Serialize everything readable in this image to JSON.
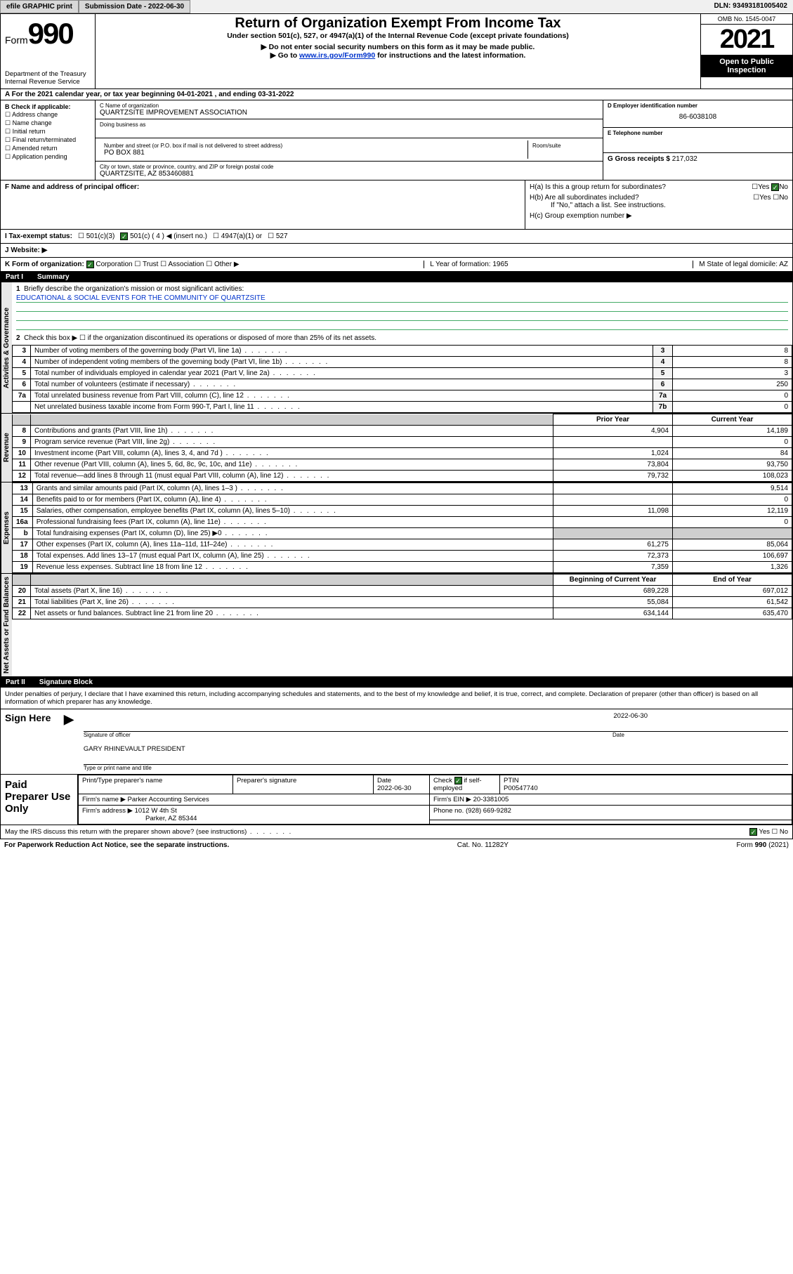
{
  "topbar": {
    "efile": "efile GRAPHIC print",
    "submission_label": "Submission Date - 2022-06-30",
    "dln": "DLN: 93493181005402"
  },
  "header": {
    "form_word": "Form",
    "form_num": "990",
    "dept": "Department of the Treasury",
    "irs": "Internal Revenue Service",
    "title": "Return of Organization Exempt From Income Tax",
    "sub1": "Under section 501(c), 527, or 4947(a)(1) of the Internal Revenue Code (except private foundations)",
    "sub2": "▶ Do not enter social security numbers on this form as it may be made public.",
    "sub3_pre": "▶ Go to ",
    "sub3_link": "www.irs.gov/Form990",
    "sub3_post": " for instructions and the latest information.",
    "omb": "OMB No. 1545-0047",
    "year": "2021",
    "open": "Open to Public Inspection"
  },
  "rowA": {
    "text": "A For the 2021 calendar year, or tax year beginning 04-01-2021    , and ending 03-31-2022"
  },
  "boxB": {
    "label": "B Check if applicable:",
    "items": [
      "Address change",
      "Name change",
      "Initial return",
      "Final return/terminated",
      "Amended return",
      "Application pending"
    ]
  },
  "boxC": {
    "name_lbl": "C Name of organization",
    "name": "QUARTZSITE IMPROVEMENT ASSOCIATION",
    "dba_lbl": "Doing business as",
    "addr_lbl": "Number and street (or P.O. box if mail is not delivered to street address)",
    "room_lbl": "Room/suite",
    "addr": "PO BOX 881",
    "city_lbl": "City or town, state or province, country, and ZIP or foreign postal code",
    "city": "QUARTZSITE, AZ  853460881"
  },
  "boxD": {
    "lbl": "D Employer identification number",
    "val": "86-6038108"
  },
  "boxE": {
    "lbl": "E Telephone number",
    "val": ""
  },
  "boxG": {
    "lbl": "G Gross receipts $",
    "val": "217,032"
  },
  "boxF": {
    "lbl": "F  Name and address of principal officer:"
  },
  "boxH": {
    "ha": "H(a)  Is this a group return for subordinates?",
    "hb": "H(b)  Are all subordinates included?",
    "hb_note": "If \"No,\" attach a list. See instructions.",
    "hc": "H(c)  Group exemption number ▶",
    "yes": "Yes",
    "no": "No"
  },
  "taxI": {
    "lbl": "I   Tax-exempt status:",
    "o1": "501(c)(3)",
    "o2": "501(c) ( 4 ) ◀ (insert no.)",
    "o3": "4947(a)(1) or",
    "o4": "527"
  },
  "webJ": {
    "lbl": "J   Website: ▶"
  },
  "rowK": {
    "k": "K Form of organization:",
    "opts": [
      "Corporation",
      "Trust",
      "Association",
      "Other ▶"
    ],
    "l": "L Year of formation: 1965",
    "m": "M State of legal domicile: AZ"
  },
  "part1": {
    "num": "Part I",
    "title": "Summary"
  },
  "summary": {
    "q1": "Briefly describe the organization's mission or most significant activities:",
    "mission": "EDUCATIONAL & SOCIAL EVENTS FOR THE COMMUNITY OF QUARTZSITE",
    "q2": "Check this box ▶ ☐  if the organization discontinued its operations or disposed of more than 25% of its net assets."
  },
  "gov_rows": [
    {
      "n": "3",
      "t": "Number of voting members of the governing body (Part VI, line 1a)",
      "box": "3",
      "v": "8"
    },
    {
      "n": "4",
      "t": "Number of independent voting members of the governing body (Part VI, line 1b)",
      "box": "4",
      "v": "8"
    },
    {
      "n": "5",
      "t": "Total number of individuals employed in calendar year 2021 (Part V, line 2a)",
      "box": "5",
      "v": "3"
    },
    {
      "n": "6",
      "t": "Total number of volunteers (estimate if necessary)",
      "box": "6",
      "v": "250"
    },
    {
      "n": "7a",
      "t": "Total unrelated business revenue from Part VIII, column (C), line 12",
      "box": "7a",
      "v": "0"
    },
    {
      "n": "",
      "t": "Net unrelated business taxable income from Form 990-T, Part I, line 11",
      "box": "7b",
      "v": "0"
    }
  ],
  "cols": {
    "py": "Prior Year",
    "cy": "Current Year",
    "boc": "Beginning of Current Year",
    "eoy": "End of Year"
  },
  "rev_rows": [
    {
      "n": "8",
      "t": "Contributions and grants (Part VIII, line 1h)",
      "py": "4,904",
      "cy": "14,189"
    },
    {
      "n": "9",
      "t": "Program service revenue (Part VIII, line 2g)",
      "py": "",
      "cy": "0"
    },
    {
      "n": "10",
      "t": "Investment income (Part VIII, column (A), lines 3, 4, and 7d )",
      "py": "1,024",
      "cy": "84"
    },
    {
      "n": "11",
      "t": "Other revenue (Part VIII, column (A), lines 5, 6d, 8c, 9c, 10c, and 11e)",
      "py": "73,804",
      "cy": "93,750"
    },
    {
      "n": "12",
      "t": "Total revenue—add lines 8 through 11 (must equal Part VIII, column (A), line 12)",
      "py": "79,732",
      "cy": "108,023"
    }
  ],
  "exp_rows": [
    {
      "n": "13",
      "t": "Grants and similar amounts paid (Part IX, column (A), lines 1–3 )",
      "py": "",
      "cy": "9,514"
    },
    {
      "n": "14",
      "t": "Benefits paid to or for members (Part IX, column (A), line 4)",
      "py": "",
      "cy": "0"
    },
    {
      "n": "15",
      "t": "Salaries, other compensation, employee benefits (Part IX, column (A), lines 5–10)",
      "py": "11,098",
      "cy": "12,119"
    },
    {
      "n": "16a",
      "t": "Professional fundraising fees (Part IX, column (A), line 11e)",
      "py": "",
      "cy": "0"
    },
    {
      "n": "b",
      "t": "Total fundraising expenses (Part IX, column (D), line 25) ▶0",
      "py": "GRAY",
      "cy": "GRAY"
    },
    {
      "n": "17",
      "t": "Other expenses (Part IX, column (A), lines 11a–11d, 11f–24e)",
      "py": "61,275",
      "cy": "85,064"
    },
    {
      "n": "18",
      "t": "Total expenses. Add lines 13–17 (must equal Part IX, column (A), line 25)",
      "py": "72,373",
      "cy": "106,697"
    },
    {
      "n": "19",
      "t": "Revenue less expenses. Subtract line 18 from line 12",
      "py": "7,359",
      "cy": "1,326"
    }
  ],
  "net_rows": [
    {
      "n": "20",
      "t": "Total assets (Part X, line 16)",
      "py": "689,228",
      "cy": "697,012"
    },
    {
      "n": "21",
      "t": "Total liabilities (Part X, line 26)",
      "py": "55,084",
      "cy": "61,542"
    },
    {
      "n": "22",
      "t": "Net assets or fund balances. Subtract line 21 from line 20",
      "py": "634,144",
      "cy": "635,470"
    }
  ],
  "sides": {
    "gov": "Activities & Governance",
    "rev": "Revenue",
    "exp": "Expenses",
    "net": "Net Assets or Fund Balances"
  },
  "part2": {
    "num": "Part II",
    "title": "Signature Block"
  },
  "sig": {
    "perjury": "Under penalties of perjury, I declare that I have examined this return, including accompanying schedules and statements, and to the best of my knowledge and belief, it is true, correct, and complete. Declaration of preparer (other than officer) is based on all information of which preparer has any knowledge.",
    "sign_here": "Sign Here",
    "sig_officer": "Signature of officer",
    "date": "Date",
    "date_val": "2022-06-30",
    "name_title": "GARY RHINEVAULT  PRESIDENT",
    "name_lbl": "Type or print name and title"
  },
  "prep": {
    "title": "Paid Preparer Use Only",
    "c1": "Print/Type preparer's name",
    "c2": "Preparer's signature",
    "c3": "Date",
    "c3v": "2022-06-30",
    "c4": "Check",
    "c4b": "if self-employed",
    "c5": "PTIN",
    "c5v": "P00547740",
    "firm_name_lbl": "Firm's name     ▶",
    "firm_name": "Parker Accounting Services",
    "firm_ein_lbl": "Firm's EIN ▶",
    "firm_ein": "20-3381005",
    "firm_addr_lbl": "Firm's address ▶",
    "firm_addr1": "1012 W 4th St",
    "firm_addr2": "Parker, AZ  85344",
    "phone_lbl": "Phone no.",
    "phone": "(928) 669-9282",
    "discuss": "May the IRS discuss this return with the preparer shown above? (see instructions)"
  },
  "foot": {
    "l": "For Paperwork Reduction Act Notice, see the separate instructions.",
    "c": "Cat. No. 11282Y",
    "r": "Form 990 (2021)"
  }
}
